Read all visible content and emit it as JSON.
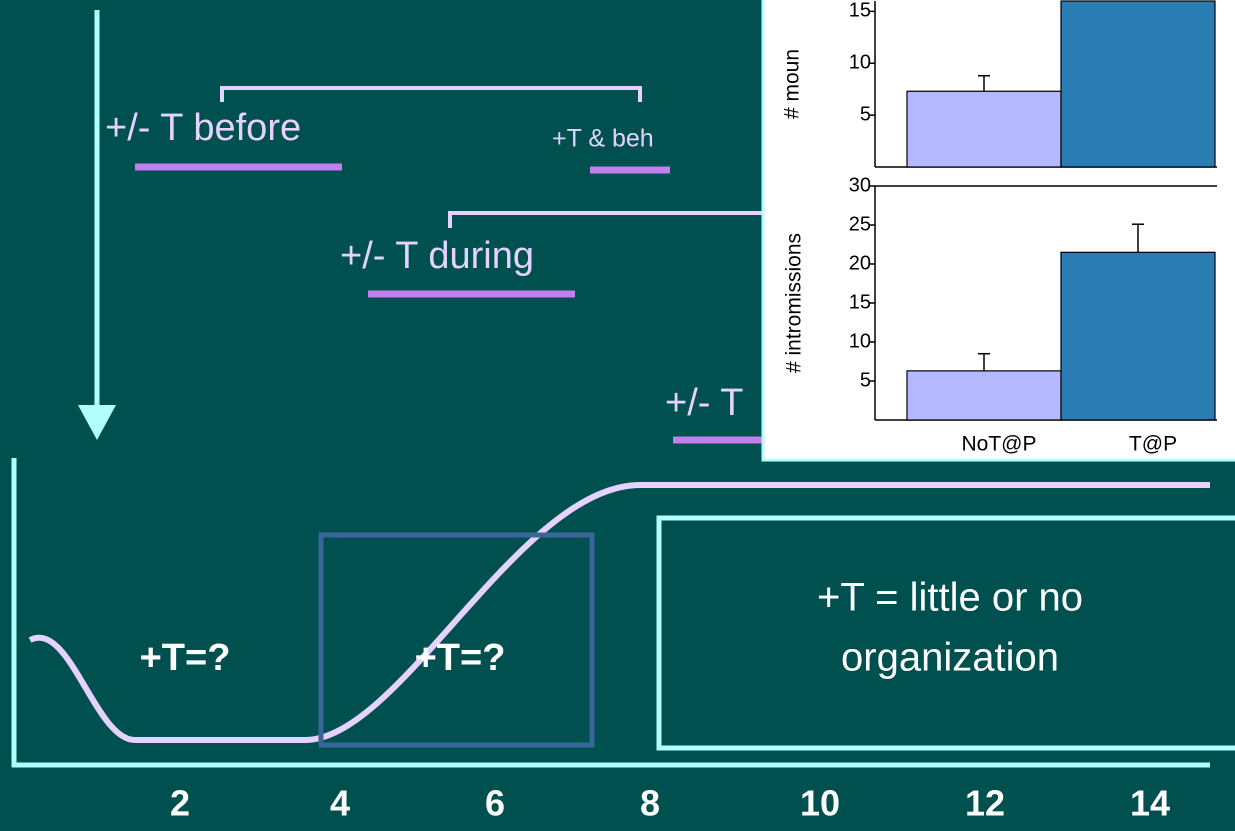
{
  "slide": {
    "labels": {
      "before": "+/- T before",
      "beh": "+T & beh",
      "during": "+/- T during",
      "after": "+/- T"
    },
    "stages": [
      "+T=?",
      "+T=?"
    ],
    "conclusion": [
      "+T = little or no",
      "organization"
    ],
    "x_labels": [
      "2",
      "4",
      "6",
      "8",
      "10",
      "12",
      "14"
    ]
  },
  "chart_data": [
    {
      "type": "bar",
      "ylabel": "# moun",
      "categories": [
        null,
        null
      ],
      "values": [
        7.3,
        16
      ],
      "errors": [
        1.5,
        null
      ],
      "colors": [
        "#b3b8ff",
        "#2a7db3"
      ],
      "ylim": [
        0,
        16
      ],
      "yticks": [
        5,
        10,
        15
      ]
    },
    {
      "type": "bar",
      "ylabel": "# intromissions",
      "categories": [
        "NoT@P",
        "T@P"
      ],
      "values": [
        6.3,
        21.5
      ],
      "errors": [
        2.2,
        3.6
      ],
      "colors": [
        "#b3b8ff",
        "#2a7db3"
      ],
      "ylim": [
        0,
        30
      ],
      "yticks": [
        5,
        10,
        15,
        20,
        25,
        30
      ]
    }
  ]
}
